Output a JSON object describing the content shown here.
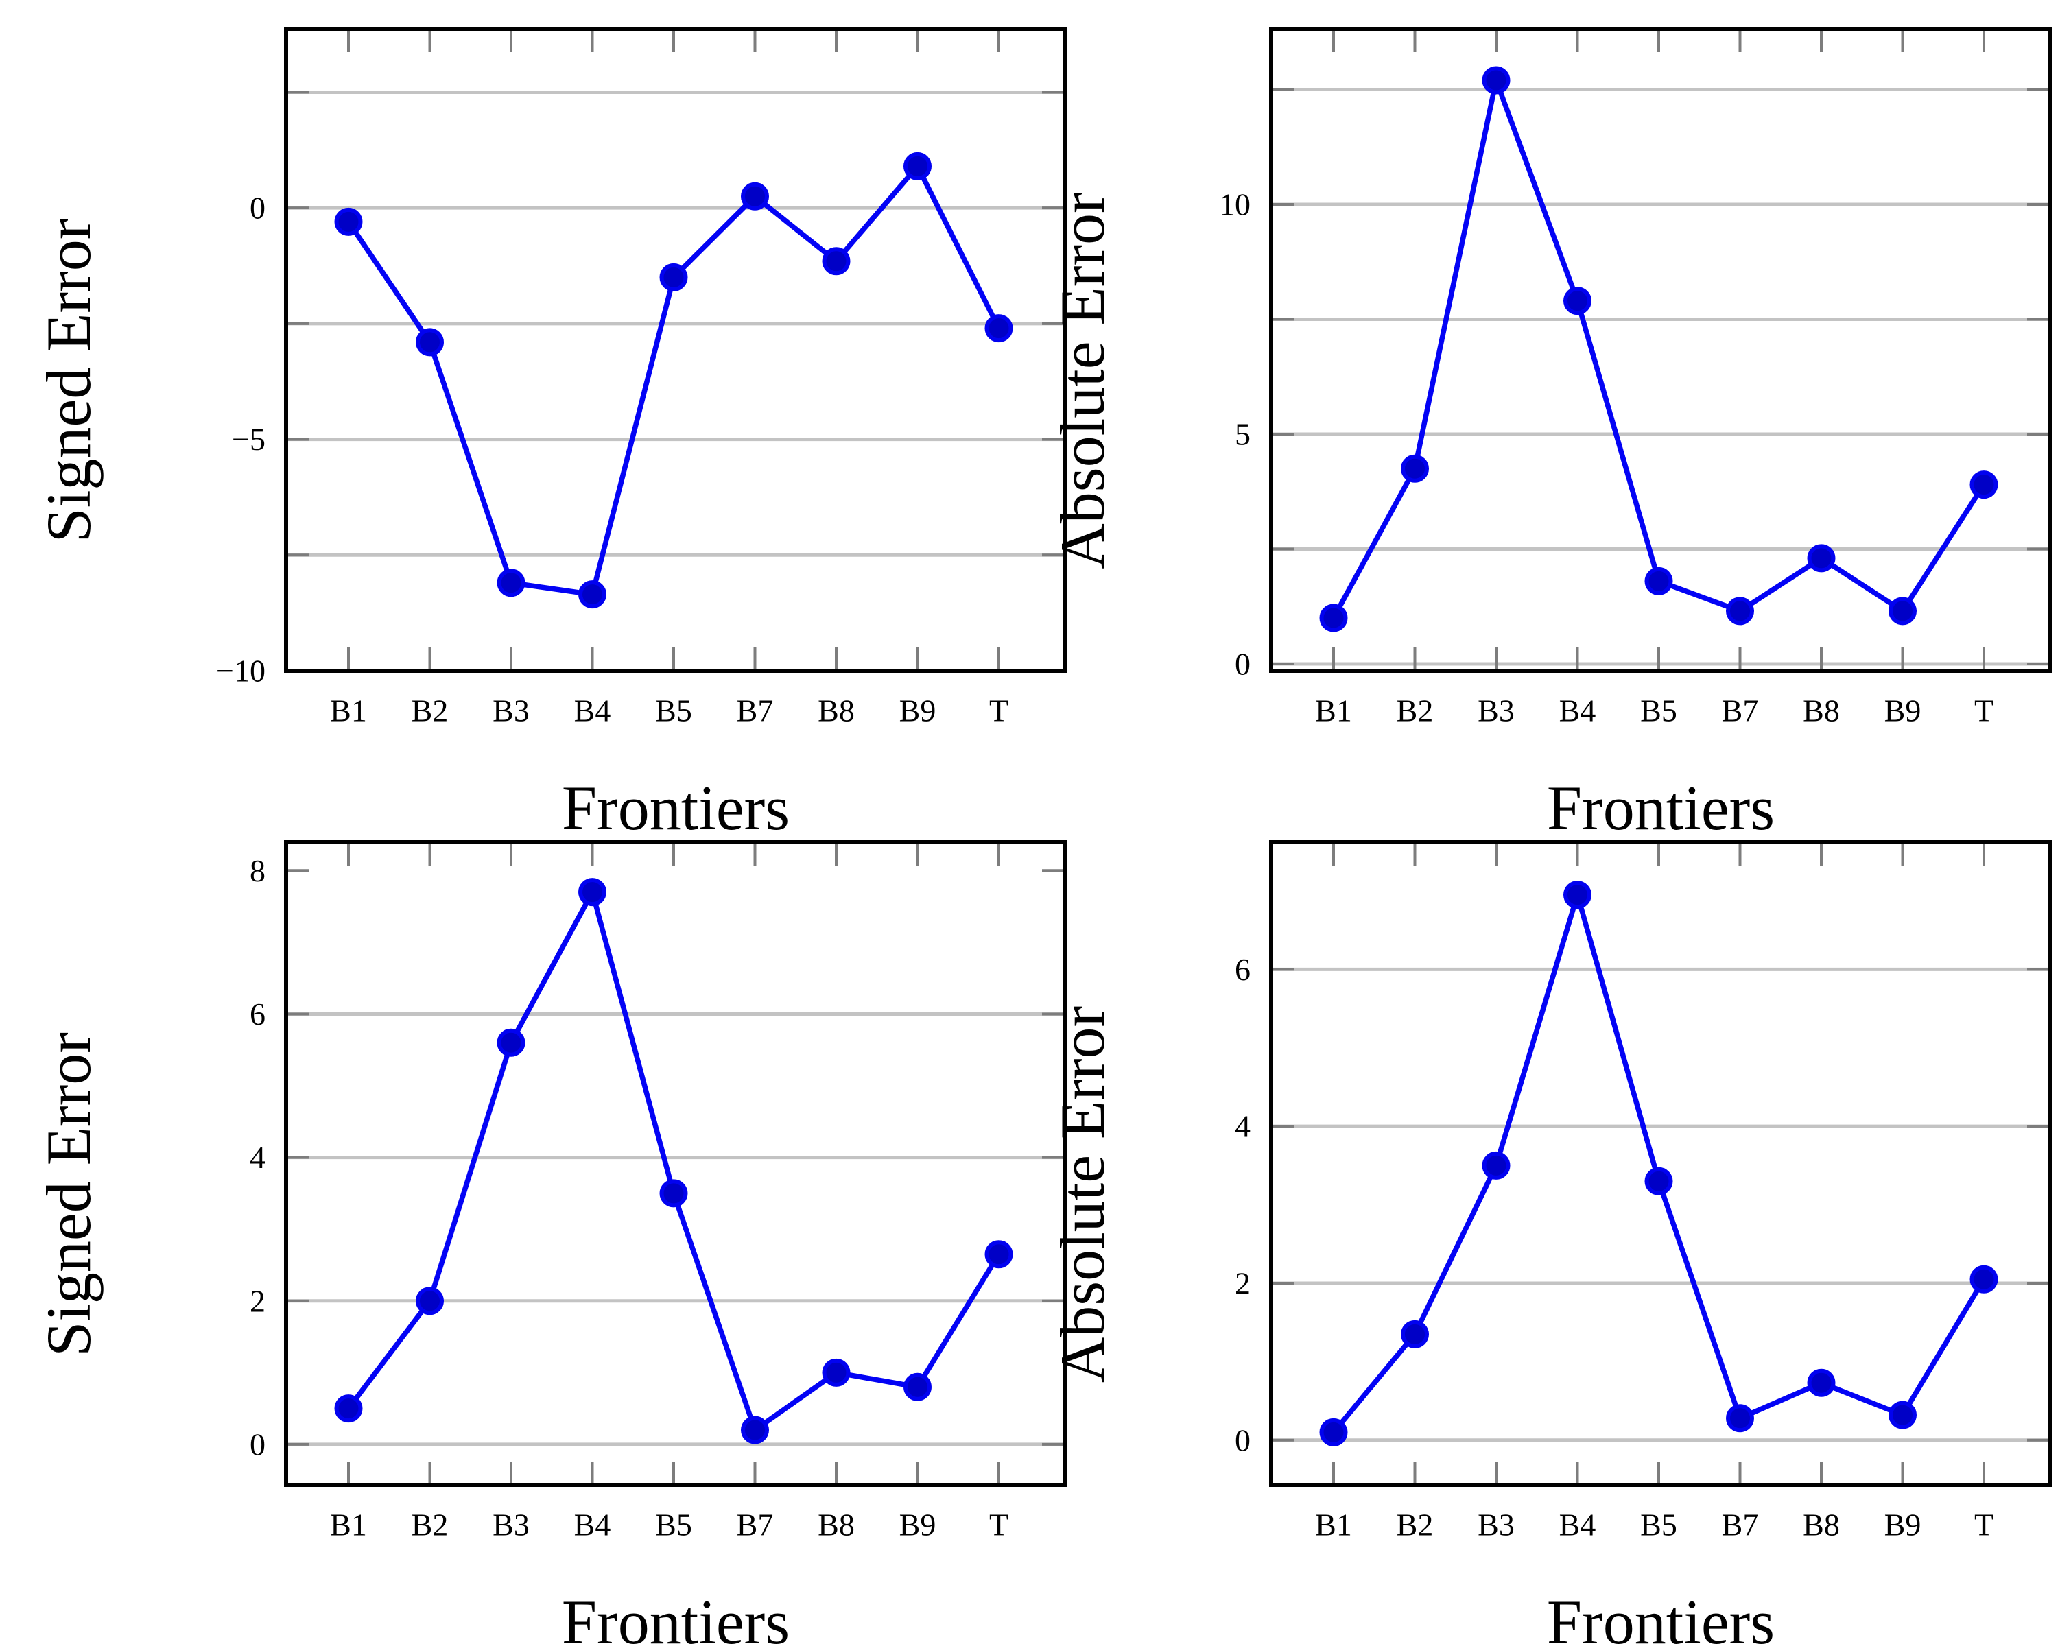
{
  "figure": {
    "background": "#ffffff",
    "description": "2x2 grid of line charts of prediction errors per frontier"
  },
  "palette": {
    "line": "#0303f5",
    "marker_fill": "#0000c6",
    "marker_edge": "#0202f0",
    "grid": "#c3c3c3",
    "tick": "#7d7d7d",
    "frame": "#000000",
    "text": "#000000"
  },
  "chart_data": [
    {
      "id": "signed-error-top",
      "type": "line",
      "title": "",
      "xlabel": "Frontiers",
      "ylabel": "Signed Error",
      "categories": [
        "B1",
        "B2",
        "B3",
        "B4",
        "B5",
        "B7",
        "B8",
        "B9",
        "T"
      ],
      "values": [
        -0.3,
        -2.9,
        -8.1,
        -8.35,
        -1.5,
        0.25,
        -1.15,
        0.9,
        -2.6
      ],
      "ylim": [
        -10.0,
        3.87
      ],
      "grid_values": [
        2.5,
        0,
        -2.5,
        -5,
        -7.5
      ],
      "ytick_values": [
        2.5,
        0,
        -2.5,
        -5,
        -7.5
      ],
      "yticks": [
        {
          "value": 0,
          "label": "0"
        },
        {
          "value": -5,
          "label": "−5"
        },
        {
          "value": -10,
          "label": "−10"
        }
      ],
      "grid_on": true,
      "legend": "none",
      "marker": "filled-circle"
    },
    {
      "id": "absolute-error-top",
      "type": "line",
      "title": "",
      "xlabel": "Frontiers",
      "ylabel": "Absolute Error",
      "categories": [
        "B1",
        "B2",
        "B3",
        "B4",
        "B5",
        "B7",
        "B8",
        "B9",
        "T"
      ],
      "values": [
        1.0,
        4.25,
        12.7,
        7.9,
        1.8,
        1.15,
        2.3,
        1.15,
        3.9
      ],
      "ylim": [
        -0.15,
        13.82
      ],
      "grid_values": [
        0,
        2.5,
        5,
        7.5,
        10,
        12.5
      ],
      "ytick_values": [
        0,
        2.5,
        5,
        7.5,
        10,
        12.5
      ],
      "yticks": [
        {
          "value": 10,
          "label": "10"
        },
        {
          "value": 5,
          "label": "5"
        },
        {
          "value": 0,
          "label": "0"
        }
      ],
      "grid_on": true,
      "legend": "none",
      "marker": "filled-circle"
    },
    {
      "id": "signed-error-bottom",
      "type": "line",
      "title": "",
      "xlabel": "Frontiers",
      "ylabel": "Signed Error",
      "categories": [
        "B1",
        "B2",
        "B3",
        "B4",
        "B5",
        "B7",
        "B8",
        "B9",
        "T"
      ],
      "values": [
        0.5,
        2.0,
        5.6,
        7.7,
        3.5,
        0.2,
        1.0,
        0.8,
        2.65
      ],
      "ylim": [
        -0.565,
        8.395
      ],
      "grid_values": [
        0,
        2,
        4,
        6
      ],
      "ytick_values": [
        0,
        2,
        4,
        6,
        8
      ],
      "yticks": [
        {
          "value": 8,
          "label": "8"
        },
        {
          "value": 6,
          "label": "6"
        },
        {
          "value": 4,
          "label": "4"
        },
        {
          "value": 2,
          "label": "2"
        },
        {
          "value": 0,
          "label": "0"
        }
      ],
      "grid_on": true,
      "legend": "none",
      "marker": "filled-circle"
    },
    {
      "id": "absolute-error-bottom",
      "type": "line",
      "title": "",
      "xlabel": "Frontiers",
      "ylabel": "Absolute Error",
      "categories": [
        "B1",
        "B2",
        "B3",
        "B4",
        "B5",
        "B7",
        "B8",
        "B9",
        "T"
      ],
      "values": [
        0.1,
        1.35,
        3.5,
        6.95,
        3.3,
        0.28,
        0.73,
        0.32,
        2.05
      ],
      "ylim": [
        -0.57,
        7.62
      ],
      "grid_values": [
        0,
        2,
        4,
        6
      ],
      "ytick_values": [
        0,
        2,
        4,
        6
      ],
      "yticks": [
        {
          "value": 6,
          "label": "6"
        },
        {
          "value": 4,
          "label": "4"
        },
        {
          "value": 2,
          "label": "2"
        },
        {
          "value": 0,
          "label": "0"
        }
      ],
      "grid_on": true,
      "legend": "none",
      "marker": "filled-circle"
    }
  ]
}
